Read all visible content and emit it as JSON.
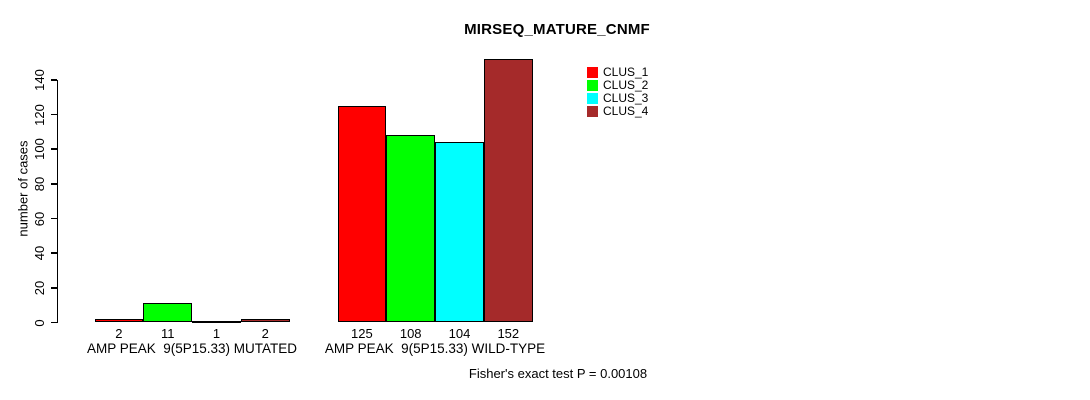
{
  "chart_data": {
    "type": "bar",
    "title": "MIRSEQ_MATURE_CNMF",
    "ylabel": "number of cases",
    "xlabel": "",
    "categories": [
      "AMP PEAK  9(5P15.33) MUTATED",
      "AMP PEAK  9(5P15.33) WILD-TYPE"
    ],
    "series": [
      {
        "name": "CLUS_1",
        "color": "#FF0000",
        "values": [
          2,
          125
        ]
      },
      {
        "name": "CLUS_2",
        "color": "#00FF00",
        "values": [
          11,
          108
        ]
      },
      {
        "name": "CLUS_3",
        "color": "#00FFFF",
        "values": [
          1,
          104
        ]
      },
      {
        "name": "CLUS_4",
        "color": "#A52A2A",
        "values": [
          2,
          152
        ]
      }
    ],
    "bar_value_labels": [
      [
        "2",
        "11",
        "1",
        "2"
      ],
      [
        "125",
        "108",
        "104",
        "152"
      ]
    ],
    "ylim": [
      0,
      140
    ],
    "yticks": [
      0,
      20,
      40,
      60,
      80,
      100,
      120,
      140
    ],
    "grid": false,
    "legend_position": "top-right",
    "bar_border_color": "#000000",
    "axis_color": "#000000",
    "background_color": "#FFFFFF",
    "footer": "Fisher's exact test P = 0.00108"
  }
}
